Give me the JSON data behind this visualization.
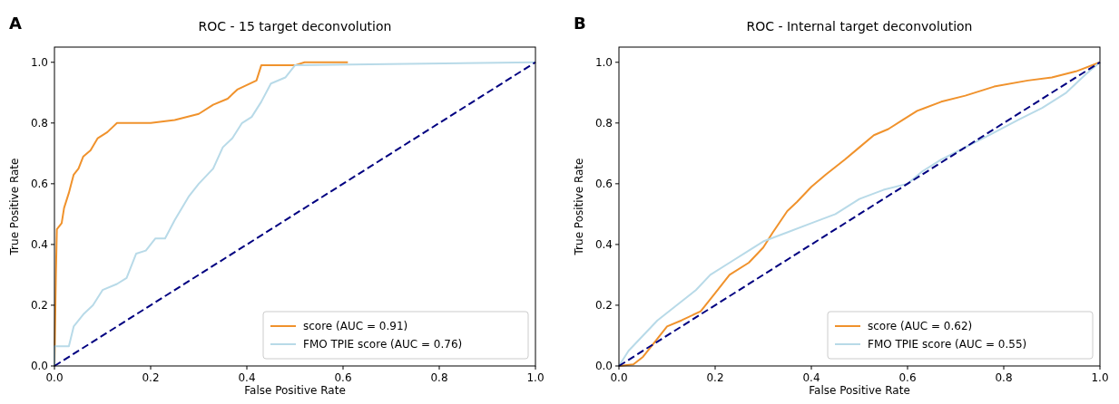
{
  "chart_data": [
    {
      "type": "line",
      "title": "ROC - 15 target deconvolution",
      "xlabel": "False Positive Rate",
      "ylabel": "True Positive Rate",
      "annotations": [
        "A"
      ],
      "xlim": [
        0,
        1
      ],
      "ylim": [
        0,
        1.05
      ],
      "xticks": [
        {
          "value": 0,
          "label": "0.0"
        },
        {
          "value": 0.2,
          "label": "0.2"
        },
        {
          "value": 0.4,
          "label": "0.4"
        },
        {
          "value": 0.6,
          "label": "0.6"
        },
        {
          "value": 0.8,
          "label": "0.8"
        },
        {
          "value": 1,
          "label": "1.0"
        }
      ],
      "yticks": [
        {
          "value": 0,
          "label": "0.0"
        },
        {
          "value": 0.2,
          "label": "0.2"
        },
        {
          "value": 0.4,
          "label": "0.4"
        },
        {
          "value": 0.6,
          "label": "0.6"
        },
        {
          "value": 0.8,
          "label": "0.8"
        },
        {
          "value": 1,
          "label": "1.0"
        }
      ],
      "legend": "bottom right",
      "series": [
        {
          "name": "score (AUC = 0.91)",
          "color": "#f0922c",
          "x": [
            0,
            0.003,
            0.005,
            0.015,
            0.02,
            0.03,
            0.035,
            0.04,
            0.05,
            0.06,
            0.075,
            0.09,
            0.11,
            0.13,
            0.2,
            0.25,
            0.3,
            0.33,
            0.36,
            0.38,
            0.42,
            0.43,
            0.5,
            0.52,
            0.61
          ],
          "values": [
            0,
            0.3,
            0.45,
            0.47,
            0.52,
            0.57,
            0.6,
            0.63,
            0.65,
            0.69,
            0.71,
            0.75,
            0.77,
            0.8,
            0.8,
            0.81,
            0.83,
            0.86,
            0.88,
            0.91,
            0.94,
            0.99,
            0.99,
            1,
            1
          ]
        },
        {
          "name": "FMO TPIE score (AUC = 0.76)",
          "color": "#b8dae8",
          "x": [
            0,
            0,
            0.03,
            0.04,
            0.06,
            0.08,
            0.1,
            0.13,
            0.15,
            0.17,
            0.19,
            0.21,
            0.23,
            0.25,
            0.28,
            0.3,
            0.33,
            0.35,
            0.37,
            0.39,
            0.41,
            0.43,
            0.45,
            0.48,
            0.5,
            1
          ],
          "values": [
            0,
            0.065,
            0.065,
            0.13,
            0.17,
            0.2,
            0.25,
            0.27,
            0.29,
            0.37,
            0.38,
            0.42,
            0.42,
            0.48,
            0.56,
            0.6,
            0.65,
            0.72,
            0.75,
            0.8,
            0.82,
            0.87,
            0.93,
            0.95,
            0.99,
            1
          ]
        },
        {
          "color": "#000080",
          "line_style": "dashed",
          "x": [
            0,
            1
          ],
          "values": [
            0,
            1
          ]
        }
      ]
    },
    {
      "type": "line",
      "title": "ROC - Internal target deconvolution",
      "xlabel": "False Positive Rate",
      "ylabel": "True Positive Rate",
      "annotations": [
        "B"
      ],
      "xlim": [
        0,
        1
      ],
      "ylim": [
        0,
        1.05
      ],
      "xticks": [
        {
          "value": 0,
          "label": "0.0"
        },
        {
          "value": 0.2,
          "label": "0.2"
        },
        {
          "value": 0.4,
          "label": "0.4"
        },
        {
          "value": 0.6,
          "label": "0.6"
        },
        {
          "value": 0.8,
          "label": "0.8"
        },
        {
          "value": 1,
          "label": "1.0"
        }
      ],
      "yticks": [
        {
          "value": 0,
          "label": "0.0"
        },
        {
          "value": 0.2,
          "label": "0.2"
        },
        {
          "value": 0.4,
          "label": "0.4"
        },
        {
          "value": 0.6,
          "label": "0.6"
        },
        {
          "value": 0.8,
          "label": "0.8"
        },
        {
          "value": 1,
          "label": "1.0"
        }
      ],
      "legend": "bottom right",
      "series": [
        {
          "name": "score (AUC = 0.62)",
          "color": "#f0922c",
          "x": [
            0,
            0.03,
            0.05,
            0.08,
            0.1,
            0.13,
            0.17,
            0.2,
            0.23,
            0.27,
            0.3,
            0.32,
            0.35,
            0.37,
            0.4,
            0.43,
            0.47,
            0.5,
            0.53,
            0.56,
            0.59,
            0.62,
            0.67,
            0.72,
            0.78,
            0.85,
            0.9,
            0.95,
            1
          ],
          "values": [
            0,
            0.005,
            0.03,
            0.09,
            0.13,
            0.15,
            0.18,
            0.24,
            0.3,
            0.34,
            0.39,
            0.44,
            0.51,
            0.54,
            0.59,
            0.63,
            0.68,
            0.72,
            0.76,
            0.78,
            0.81,
            0.84,
            0.87,
            0.89,
            0.92,
            0.94,
            0.95,
            0.97,
            1
          ]
        },
        {
          "name": "FMO TPIE score (AUC = 0.55)",
          "color": "#b8dae8",
          "x": [
            0,
            0.02,
            0.05,
            0.08,
            0.12,
            0.16,
            0.19,
            0.23,
            0.27,
            0.3,
            0.35,
            0.4,
            0.45,
            0.5,
            0.55,
            0.6,
            0.63,
            0.67,
            0.72,
            0.77,
            0.83,
            0.88,
            0.93,
            0.97,
            1
          ],
          "values": [
            0,
            0.05,
            0.1,
            0.15,
            0.2,
            0.25,
            0.3,
            0.34,
            0.38,
            0.41,
            0.44,
            0.47,
            0.5,
            0.55,
            0.58,
            0.6,
            0.64,
            0.68,
            0.72,
            0.76,
            0.81,
            0.85,
            0.9,
            0.96,
            1
          ]
        },
        {
          "color": "#000080",
          "line_style": "dashed",
          "x": [
            0,
            1
          ],
          "values": [
            0,
            1
          ]
        }
      ]
    }
  ]
}
